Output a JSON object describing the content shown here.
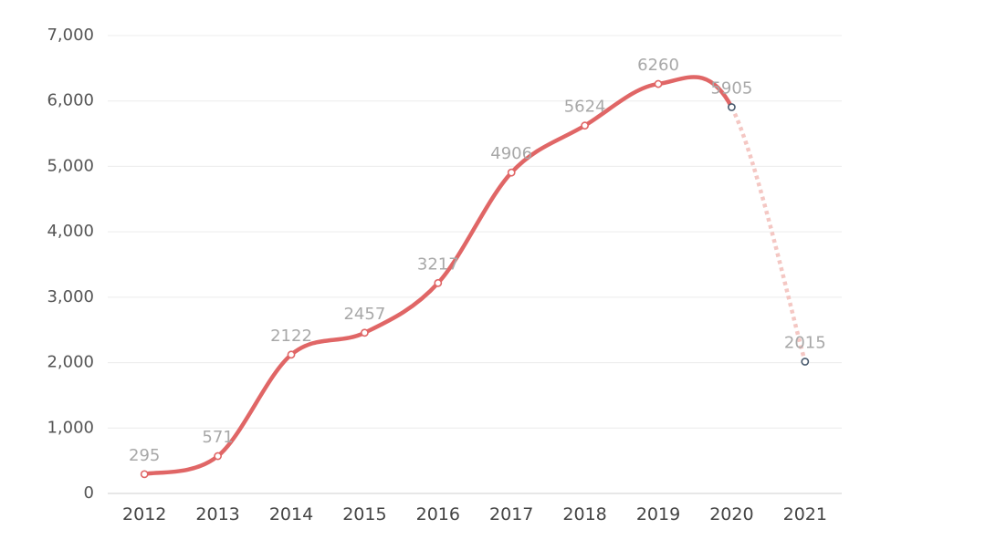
{
  "chart_data": {
    "type": "line",
    "title": "",
    "xlabel": "",
    "ylabel": "",
    "categories": [
      "2012",
      "2013",
      "2014",
      "2015",
      "2016",
      "2017",
      "2018",
      "2019",
      "2020",
      "2021"
    ],
    "series": [
      {
        "values": [
          295,
          571,
          2122,
          2457,
          3217,
          4906,
          5624,
          6260,
          5905,
          2015
        ],
        "data_labels": [
          "295",
          "571",
          "2122",
          "2457",
          "3217",
          "4906",
          "5624",
          "6260",
          "5905",
          "2015"
        ],
        "forecast_from_index": 8
      }
    ],
    "ylim": [
      0,
      7000
    ],
    "y_ticks": [
      0,
      1000,
      2000,
      3000,
      4000,
      5000,
      6000,
      7000
    ],
    "y_tick_labels": [
      "0",
      "1,000",
      "2,000",
      "3,000",
      "4,000",
      "5,000",
      "6,000",
      "7,000"
    ],
    "grid": true,
    "legend": "none",
    "line_style": "smooth",
    "colors": {
      "line": "#e06666",
      "forecast_line": "#f4c7c3",
      "marker_edge_actual": "#e06666",
      "marker_edge_forecast": "#4a5b6e",
      "marker_fill": "#ffffff"
    }
  }
}
